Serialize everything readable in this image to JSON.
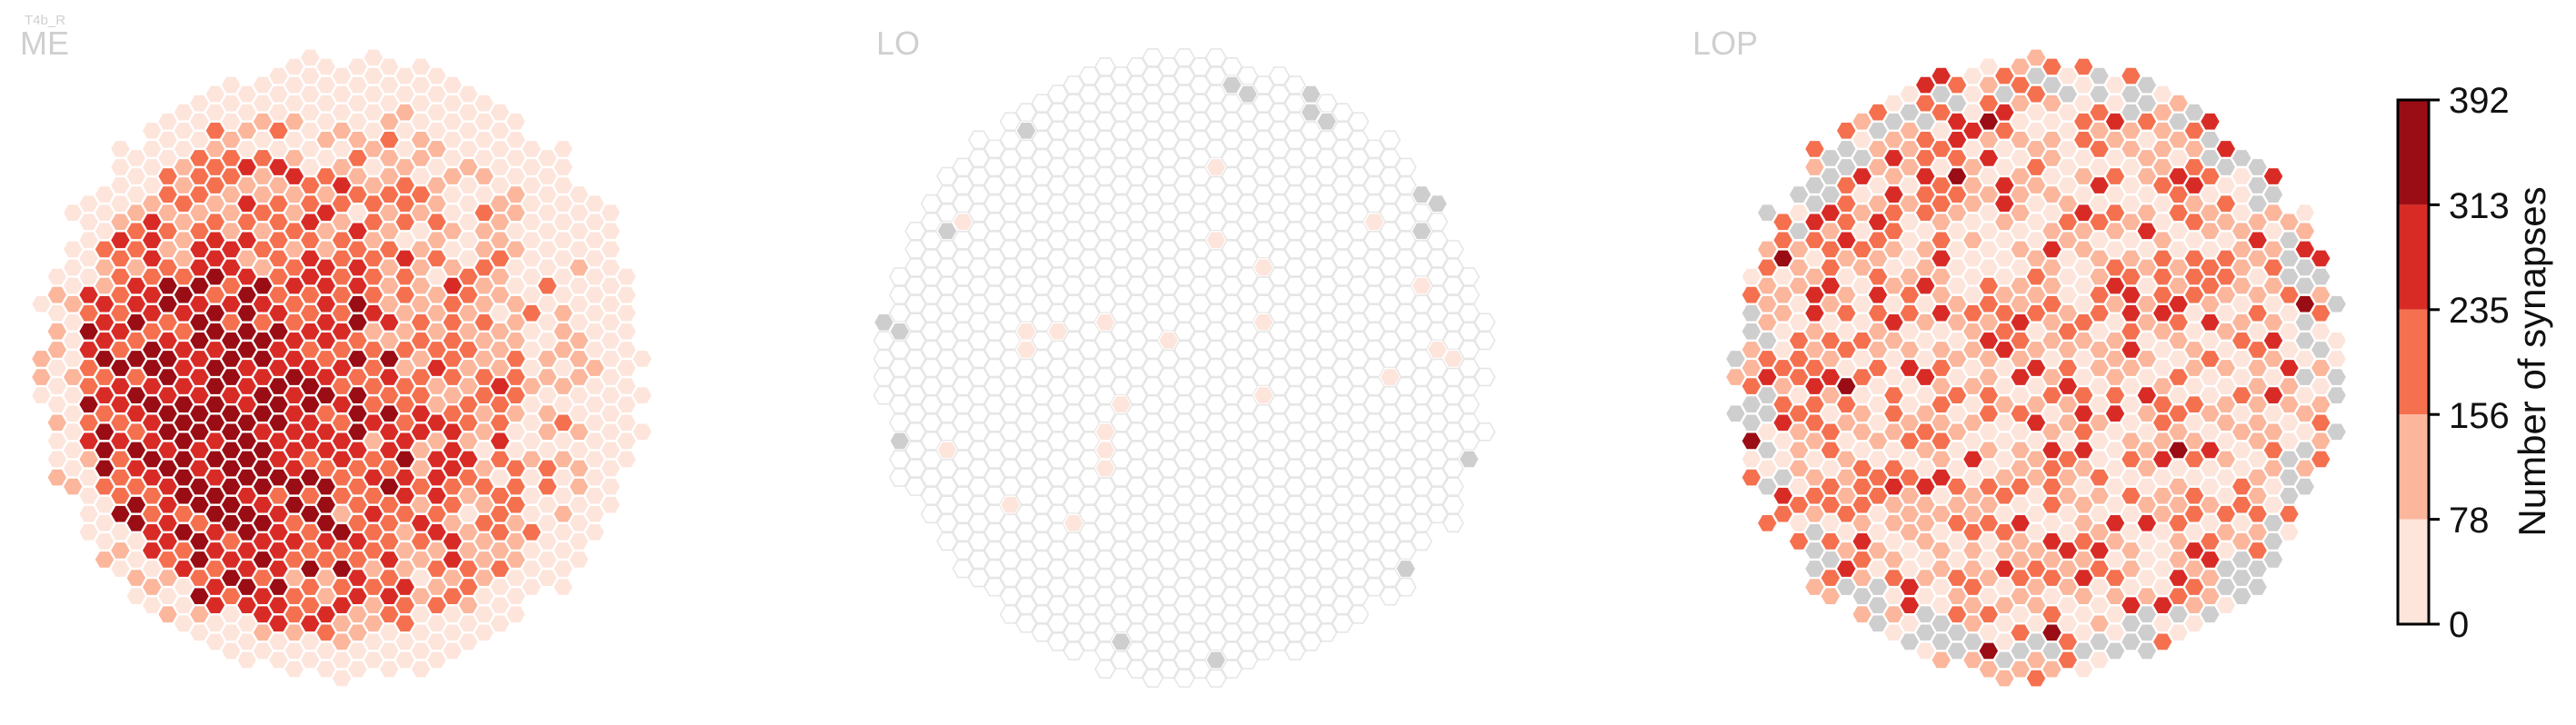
{
  "figure": {
    "cell_type_label": "T4b_R",
    "neuropils": [
      "ME",
      "LO",
      "LOP"
    ]
  },
  "chart_data": {
    "type": "heatmap",
    "subtype": "hexagonal-column-map",
    "panels": [
      {
        "name": "ME",
        "summary": "nearly all columns populated; densest (~235-392 synapses) in the lower-left center, fading to 0-78 at the rim",
        "level_distribution": {
          "0-78": 0.1,
          "78-156": 0.1,
          "156-235": 0.35,
          "235-313": 0.3,
          "313-392": 0.15
        },
        "fraction_no_data": 0.0
      },
      {
        "name": "LO",
        "summary": "almost no synapses; most columns empty (outline only), a few isolated columns at 0-78 and a handful with no data (grey) at the rim",
        "fraction_low": 0.03,
        "fraction_no_data": 0.025
      },
      {
        "name": "LOP",
        "summary": "scattered values mostly 0-235 with occasional 235-313 and one 313-392 column at the right edge; grey no-data columns along the periphery",
        "level_distribution": {
          "0-78": 0.33,
          "78-156": 0.35,
          "156-235": 0.22,
          "235-313": 0.09,
          "313-392": 0.01
        },
        "fraction_no_data": 0.12
      }
    ],
    "colorbar": {
      "label": "Number of synapses",
      "ticks": [
        "392",
        "313",
        "235",
        "156",
        "78",
        "0"
      ],
      "range": [
        0,
        392
      ],
      "bin_edges": [
        0,
        78,
        156,
        235,
        313,
        392
      ],
      "colors": [
        "#fde5db",
        "#fbb69c",
        "#f5704f",
        "#d92b26",
        "#9a0d14"
      ]
    },
    "no_data_color": "#cecece",
    "empty_column_outline": "#e6e6e6"
  }
}
